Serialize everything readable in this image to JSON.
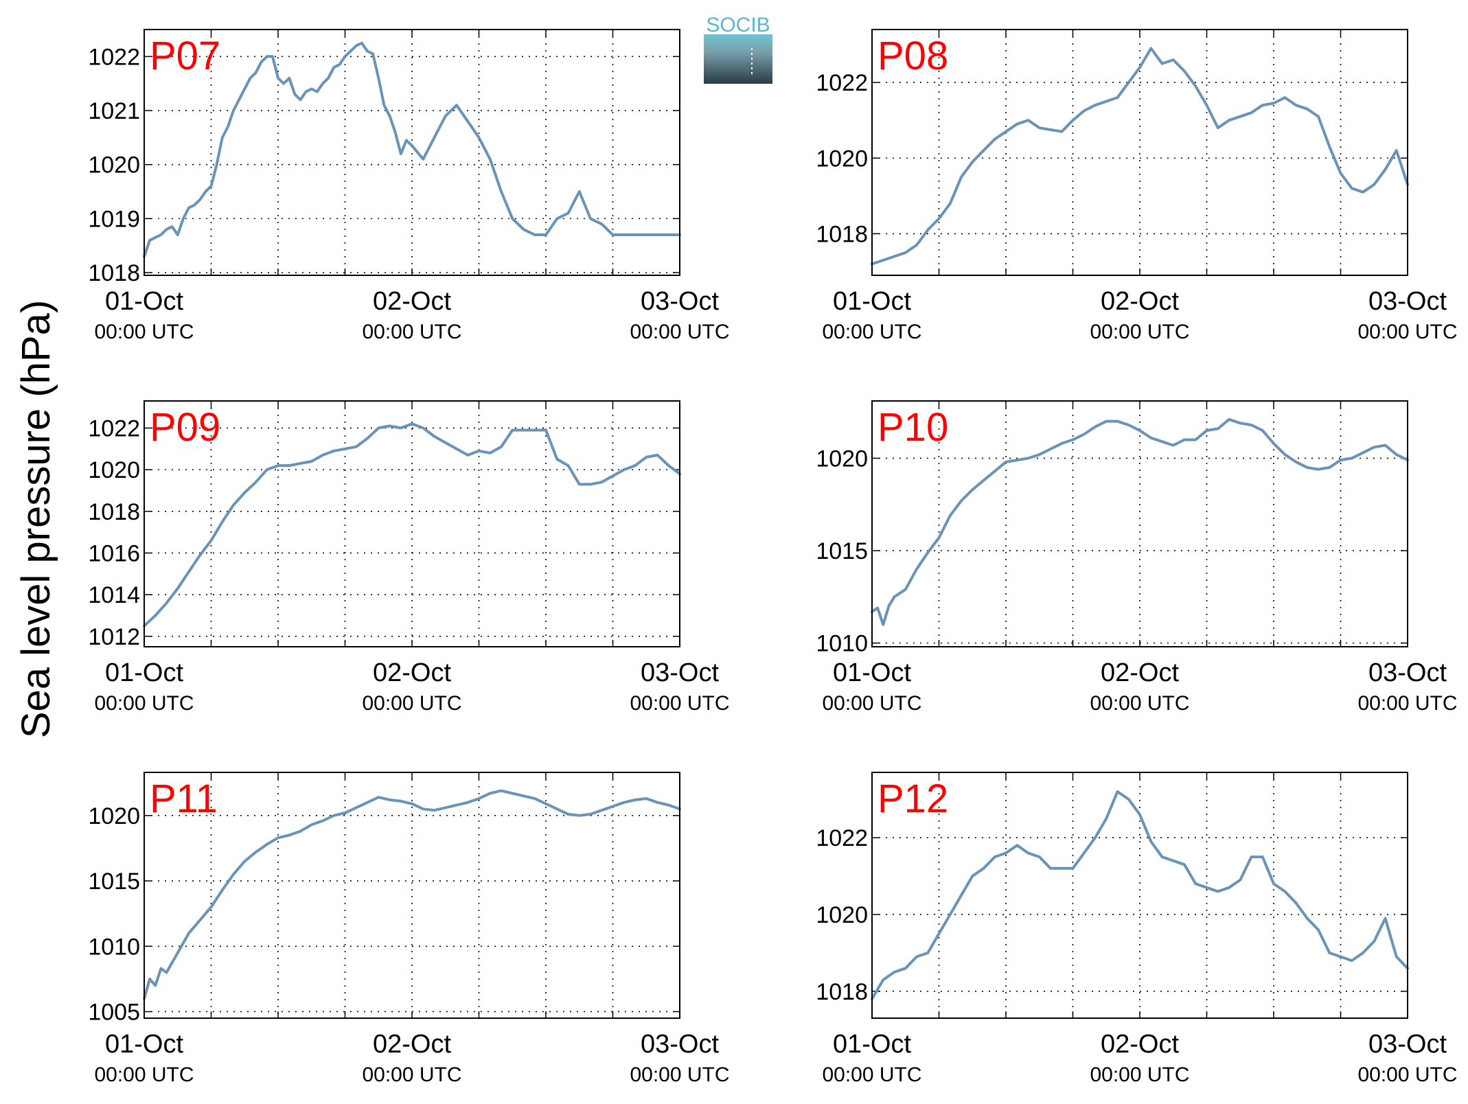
{
  "figure": {
    "ylabel": "Sea level pressure (hPa)",
    "logo_text": "SOCIB",
    "x_tick_dates": [
      "01-Oct",
      "02-Oct",
      "03-Oct"
    ],
    "x_tick_time": "00:00 UTC",
    "line_color": "#6a93b5",
    "label_color": "#ff0000"
  },
  "chart_data": [
    {
      "type": "line",
      "label": "P07",
      "ylim": [
        1017.95,
        1022.5
      ],
      "yticks": [
        1018,
        1019,
        1020,
        1021,
        1022
      ],
      "xlim": [
        0,
        48
      ],
      "grid": true,
      "x": [
        0,
        0.5,
        1,
        1.5,
        2,
        2.5,
        3,
        3.5,
        4,
        4.5,
        5,
        5.5,
        6,
        6.5,
        7,
        7.5,
        8,
        8.5,
        9,
        9.5,
        10,
        10.5,
        11,
        11.5,
        12,
        12.5,
        13,
        13.5,
        14,
        14.5,
        15,
        15.5,
        16,
        16.5,
        17,
        17.5,
        18,
        18.5,
        19,
        19.5,
        20,
        20.5,
        21,
        21.5,
        22,
        22.5,
        23,
        23.5,
        24,
        25,
        26,
        27,
        28,
        29,
        30,
        31,
        32,
        33,
        34,
        35,
        36,
        37,
        38,
        39,
        40,
        41,
        42,
        43,
        44,
        45,
        46,
        47,
        48
      ],
      "y": [
        1018.3,
        1018.6,
        1018.65,
        1018.7,
        1018.8,
        1018.85,
        1018.7,
        1019.0,
        1019.2,
        1019.25,
        1019.35,
        1019.5,
        1019.6,
        1020.0,
        1020.5,
        1020.7,
        1021.0,
        1021.2,
        1021.4,
        1021.6,
        1021.7,
        1021.9,
        1022.0,
        1022.0,
        1021.6,
        1021.5,
        1021.6,
        1021.3,
        1021.2,
        1021.35,
        1021.4,
        1021.35,
        1021.5,
        1021.6,
        1021.8,
        1021.85,
        1022.0,
        1022.1,
        1022.2,
        1022.25,
        1022.1,
        1022.05,
        1021.6,
        1021.1,
        1020.9,
        1020.6,
        1020.2,
        1020.45,
        1020.35,
        1020.1,
        1020.5,
        1020.9,
        1021.1,
        1020.8,
        1020.5,
        1020.1,
        1019.5,
        1019.0,
        1018.8,
        1018.7,
        1018.7,
        1019.0,
        1019.1,
        1019.5,
        1019.0,
        1018.9,
        1018.7,
        1018.7,
        1018.7,
        1018.7,
        1018.7,
        1018.7,
        1018.7
      ]
    },
    {
      "type": "line",
      "label": "P08",
      "ylim": [
        1016.9,
        1023.4
      ],
      "yticks": [
        1018,
        1020,
        1022
      ],
      "xlim": [
        0,
        48
      ],
      "grid": true,
      "x": [
        0,
        1,
        2,
        3,
        4,
        5,
        6,
        7,
        8,
        9,
        10,
        11,
        12,
        13,
        14,
        15,
        16,
        17,
        18,
        19,
        20,
        21,
        22,
        23,
        24,
        25,
        26,
        27,
        28,
        29,
        30,
        31,
        32,
        33,
        34,
        35,
        36,
        37,
        38,
        39,
        40,
        41,
        42,
        43,
        44,
        45,
        46,
        47,
        48
      ],
      "y": [
        1017.2,
        1017.3,
        1017.4,
        1017.5,
        1017.7,
        1018.1,
        1018.4,
        1018.8,
        1019.5,
        1019.9,
        1020.2,
        1020.5,
        1020.7,
        1020.9,
        1021.0,
        1020.8,
        1020.75,
        1020.7,
        1021.0,
        1021.25,
        1021.4,
        1021.5,
        1021.6,
        1022.0,
        1022.4,
        1022.9,
        1022.5,
        1022.6,
        1022.3,
        1021.9,
        1021.4,
        1020.8,
        1021.0,
        1021.1,
        1021.2,
        1021.4,
        1021.45,
        1021.6,
        1021.4,
        1021.3,
        1021.1,
        1020.3,
        1019.6,
        1019.2,
        1019.1,
        1019.3,
        1019.7,
        1020.2,
        1019.3
      ]
    },
    {
      "type": "line",
      "label": "P09",
      "ylim": [
        1011.5,
        1023.3
      ],
      "yticks": [
        1012,
        1014,
        1016,
        1018,
        1020,
        1022
      ],
      "xlim": [
        0,
        48
      ],
      "grid": true,
      "x": [
        0,
        1,
        2,
        3,
        4,
        5,
        6,
        7,
        8,
        9,
        10,
        11,
        12,
        13,
        14,
        15,
        16,
        17,
        18,
        19,
        20,
        21,
        22,
        23,
        24,
        25,
        26,
        27,
        28,
        29,
        30,
        31,
        32,
        33,
        34,
        35,
        36,
        37,
        38,
        39,
        40,
        41,
        42,
        43,
        44,
        45,
        46,
        47,
        48
      ],
      "y": [
        1012.5,
        1013.0,
        1013.6,
        1014.3,
        1015.1,
        1015.9,
        1016.6,
        1017.5,
        1018.3,
        1018.9,
        1019.4,
        1020.0,
        1020.2,
        1020.2,
        1020.3,
        1020.4,
        1020.7,
        1020.9,
        1021.0,
        1021.1,
        1021.5,
        1022.0,
        1022.1,
        1022.0,
        1022.2,
        1022.0,
        1021.6,
        1021.3,
        1021.0,
        1020.7,
        1020.9,
        1020.8,
        1021.1,
        1021.9,
        1021.9,
        1021.9,
        1021.9,
        1020.5,
        1020.2,
        1019.3,
        1019.3,
        1019.4,
        1019.7,
        1020.0,
        1020.2,
        1020.6,
        1020.7,
        1020.2,
        1019.8
      ]
    },
    {
      "type": "line",
      "label": "P10",
      "ylim": [
        1009.8,
        1023.1
      ],
      "yticks": [
        1010,
        1015,
        1020
      ],
      "xlim": [
        0,
        48
      ],
      "grid": true,
      "x": [
        0,
        0.5,
        1,
        1.5,
        2,
        3,
        4,
        5,
        6,
        7,
        8,
        9,
        10,
        11,
        12,
        13,
        14,
        15,
        16,
        17,
        18,
        19,
        20,
        21,
        22,
        23,
        24,
        25,
        26,
        27,
        28,
        29,
        30,
        31,
        32,
        33,
        34,
        35,
        36,
        37,
        38,
        39,
        40,
        41,
        42,
        43,
        44,
        45,
        46,
        47,
        48
      ],
      "y": [
        1011.7,
        1011.9,
        1011.0,
        1012.0,
        1012.5,
        1012.9,
        1014.0,
        1014.9,
        1015.7,
        1016.9,
        1017.7,
        1018.3,
        1018.8,
        1019.3,
        1019.8,
        1019.9,
        1020.0,
        1020.2,
        1020.5,
        1020.8,
        1021.0,
        1021.3,
        1021.7,
        1022.0,
        1022.0,
        1021.8,
        1021.5,
        1021.1,
        1020.9,
        1020.7,
        1021.0,
        1021.0,
        1021.5,
        1021.6,
        1022.1,
        1021.9,
        1021.8,
        1021.5,
        1020.8,
        1020.2,
        1019.8,
        1019.5,
        1019.4,
        1019.5,
        1019.9,
        1020.0,
        1020.3,
        1020.6,
        1020.7,
        1020.2,
        1019.9
      ]
    },
    {
      "type": "line",
      "label": "P11",
      "ylim": [
        1004.5,
        1023.3
      ],
      "yticks": [
        1005,
        1010,
        1015,
        1020
      ],
      "xlim": [
        0,
        48
      ],
      "grid": true,
      "x": [
        0,
        0.5,
        1,
        1.5,
        2,
        3,
        4,
        5,
        6,
        7,
        8,
        9,
        10,
        11,
        12,
        13,
        14,
        15,
        16,
        17,
        18,
        19,
        20,
        21,
        22,
        23,
        24,
        25,
        26,
        27,
        28,
        29,
        30,
        31,
        32,
        33,
        34,
        35,
        36,
        37,
        38,
        39,
        40,
        41,
        42,
        43,
        44,
        45,
        46,
        47,
        48
      ],
      "y": [
        1006.0,
        1007.5,
        1007.0,
        1008.3,
        1008.0,
        1009.5,
        1011.0,
        1012.0,
        1013.0,
        1014.3,
        1015.5,
        1016.5,
        1017.2,
        1017.8,
        1018.3,
        1018.5,
        1018.8,
        1019.3,
        1019.6,
        1020.0,
        1020.2,
        1020.6,
        1021.0,
        1021.4,
        1021.2,
        1021.1,
        1020.9,
        1020.5,
        1020.4,
        1020.6,
        1020.8,
        1021.0,
        1021.3,
        1021.7,
        1021.9,
        1021.7,
        1021.5,
        1021.3,
        1020.9,
        1020.5,
        1020.1,
        1020.0,
        1020.1,
        1020.4,
        1020.7,
        1021.0,
        1021.2,
        1021.3,
        1021.0,
        1020.8,
        1020.5
      ]
    },
    {
      "type": "line",
      "label": "P12",
      "ylim": [
        1017.3,
        1023.7
      ],
      "yticks": [
        1018,
        1020,
        1022
      ],
      "xlim": [
        0,
        48
      ],
      "grid": true,
      "x": [
        0,
        1,
        2,
        3,
        4,
        5,
        6,
        7,
        8,
        9,
        10,
        11,
        12,
        13,
        14,
        15,
        16,
        17,
        18,
        19,
        20,
        21,
        22,
        23,
        24,
        25,
        26,
        27,
        28,
        29,
        30,
        31,
        32,
        33,
        34,
        35,
        36,
        37,
        38,
        39,
        40,
        41,
        42,
        43,
        44,
        45,
        46,
        47,
        48
      ],
      "y": [
        1017.8,
        1018.3,
        1018.5,
        1018.6,
        1018.9,
        1019.0,
        1019.5,
        1020.0,
        1020.5,
        1021.0,
        1021.2,
        1021.5,
        1021.6,
        1021.8,
        1021.6,
        1021.5,
        1021.2,
        1021.2,
        1021.2,
        1021.6,
        1022.0,
        1022.5,
        1023.2,
        1023.0,
        1022.6,
        1021.9,
        1021.5,
        1021.4,
        1021.3,
        1020.8,
        1020.7,
        1020.6,
        1020.7,
        1020.9,
        1021.5,
        1021.5,
        1020.8,
        1020.6,
        1020.3,
        1019.9,
        1019.6,
        1019.0,
        1018.9,
        1018.8,
        1019.0,
        1019.3,
        1019.9,
        1018.9,
        1018.6
      ]
    }
  ]
}
